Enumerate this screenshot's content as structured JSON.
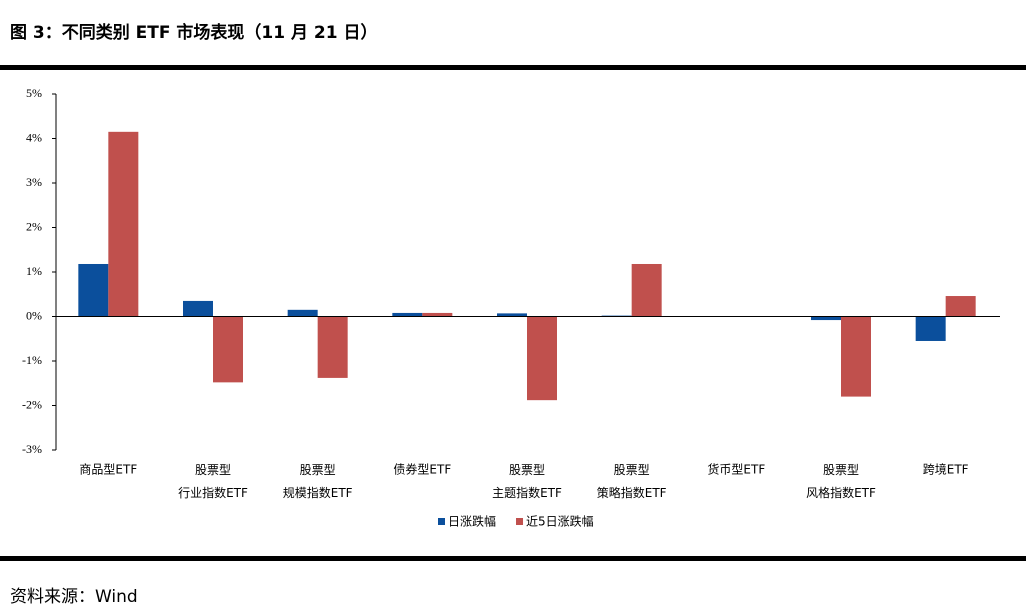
{
  "title": "图 3：不同类别 ETF 市场表现（11 月 21 日）",
  "source": "资料来源：Wind",
  "chart_data": {
    "type": "bar",
    "categories": [
      "商品型ETF",
      "股票型\n行业指数ETF",
      "股票型\n规模指数ETF",
      "债券型ETF",
      "股票型\n主题指数ETF",
      "股票型\n策略指数ETF",
      "货币型ETF",
      "股票型\n风格指数ETF",
      "跨境ETF"
    ],
    "series": [
      {
        "name": "日涨跌幅",
        "color": "#0b4f9c",
        "values": [
          1.18,
          0.35,
          0.15,
          0.08,
          0.07,
          0.02,
          0.0,
          -0.08,
          -0.55
        ]
      },
      {
        "name": "近5日涨跌幅",
        "color": "#c0504d",
        "values": [
          4.15,
          -1.48,
          -1.38,
          0.08,
          -1.88,
          1.18,
          0.0,
          -1.8,
          0.46
        ]
      }
    ],
    "ylim": [
      -3,
      5
    ],
    "yticks": [
      {
        "value": -3,
        "label": "-3%"
      },
      {
        "value": -2,
        "label": "-2%"
      },
      {
        "value": -1,
        "label": "-1%"
      },
      {
        "value": 0,
        "label": "0%"
      },
      {
        "value": 1,
        "label": "1%"
      },
      {
        "value": 2,
        "label": "2%"
      },
      {
        "value": 3,
        "label": "3%"
      },
      {
        "value": 4,
        "label": "4%"
      },
      {
        "value": 5,
        "label": "5%"
      }
    ],
    "legend": "bottom"
  }
}
